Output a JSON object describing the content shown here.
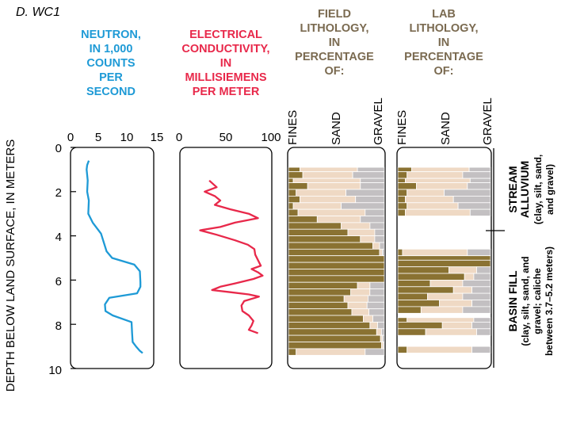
{
  "figure_label": "D. WC1",
  "y_axis_label": "DEPTH BELOW LAND SURFACE, IN METERS",
  "colors": {
    "neutron": "#1e9ad6",
    "conductivity": "#e8284a",
    "header_blue": "#1e9ad6",
    "header_red": "#e8284a",
    "header_brown": "#7a6a50",
    "fines": "#8a7232",
    "sand": "#efd9c4",
    "gravel": "#c3c0c2"
  },
  "headers": {
    "neutron": [
      "NEUTRON,",
      "IN 1,000",
      "COUNTS",
      "PER",
      "SECOND"
    ],
    "conductivity": [
      "ELECTRICAL",
      "CONDUCTIVITY,",
      "IN",
      "MILLISIEMENS",
      "PER METER"
    ],
    "field": [
      "FIELD",
      "LITHOLOGY,",
      "IN",
      "PERCENTAGE",
      "OF:"
    ],
    "lab": [
      "LAB",
      "LITHOLOGY,",
      "IN",
      "PERCENTAGE",
      "OF:"
    ],
    "litho_sub": [
      "FINES",
      "SAND",
      "GRAVEL"
    ]
  },
  "units": {
    "stream": {
      "title": "STREAM",
      "title2": "ALLUVIUM",
      "desc1": "(clay, silt, sand,",
      "desc2": "and gravel)"
    },
    "basin": {
      "title": "BASIN FILL",
      "desc1": "(clay, silt, sand, and",
      "desc2": "gravel; caliche",
      "desc3": "between 3.7–5.2 meters)"
    }
  },
  "chart_data": [
    {
      "type": "line",
      "name_header": "NEUTRON, IN 1,000 COUNTS PER SECOND",
      "xlim": [
        0,
        15
      ],
      "xticks": [
        "0",
        "5",
        "10",
        "15"
      ],
      "ylim": [
        0,
        10
      ],
      "yticks": [
        "0",
        "2",
        "4",
        "6",
        "8",
        "10"
      ],
      "y_inverted": true,
      "points": [
        [
          3.3,
          0.6
        ],
        [
          3.0,
          0.8
        ],
        [
          2.9,
          1.0
        ],
        [
          3.1,
          1.5
        ],
        [
          3.0,
          2.0
        ],
        [
          3.3,
          2.4
        ],
        [
          3.2,
          3.0
        ],
        [
          4.0,
          3.4
        ],
        [
          5.5,
          3.9
        ],
        [
          6.0,
          4.3
        ],
        [
          6.5,
          4.7
        ],
        [
          7.5,
          5.0
        ],
        [
          11.5,
          5.3
        ],
        [
          12.5,
          5.6
        ],
        [
          12.6,
          6.1
        ],
        [
          12.6,
          6.3
        ],
        [
          12.0,
          6.6
        ],
        [
          7.0,
          6.8
        ],
        [
          6.2,
          7.1
        ],
        [
          6.3,
          7.4
        ],
        [
          7.6,
          7.6
        ],
        [
          11.0,
          7.9
        ],
        [
          11.1,
          8.4
        ],
        [
          11.2,
          8.8
        ],
        [
          11.5,
          8.9
        ],
        [
          11.8,
          9.0
        ],
        [
          12.5,
          9.2
        ],
        [
          13.0,
          9.3
        ]
      ]
    },
    {
      "type": "line",
      "name_header": "ELECTRICAL CONDUCTIVITY, IN MILLISIEMENS PER METER",
      "xlim": [
        0,
        100
      ],
      "xticks": [
        "0",
        "50",
        "100"
      ],
      "ylim": [
        0,
        10
      ],
      "y_inverted": true,
      "points": [
        [
          32,
          1.5
        ],
        [
          40,
          1.8
        ],
        [
          27,
          2.0
        ],
        [
          38,
          2.2
        ],
        [
          44,
          2.4
        ],
        [
          38,
          2.6
        ],
        [
          55,
          2.8
        ],
        [
          75,
          3.0
        ],
        [
          85,
          3.2
        ],
        [
          60,
          3.4
        ],
        [
          44,
          3.6
        ],
        [
          22,
          3.75
        ],
        [
          40,
          3.95
        ],
        [
          60,
          4.2
        ],
        [
          74,
          4.4
        ],
        [
          81,
          4.6
        ],
        [
          82,
          4.85
        ],
        [
          85,
          5.1
        ],
        [
          88,
          5.35
        ],
        [
          78,
          5.5
        ],
        [
          85,
          5.65
        ],
        [
          90,
          5.8
        ],
        [
          80,
          5.95
        ],
        [
          60,
          6.15
        ],
        [
          44,
          6.3
        ],
        [
          35,
          6.45
        ],
        [
          55,
          6.55
        ],
        [
          75,
          6.65
        ],
        [
          86,
          6.75
        ],
        [
          70,
          6.95
        ],
        [
          67,
          7.15
        ],
        [
          68,
          7.4
        ],
        [
          75,
          7.6
        ],
        [
          80,
          7.85
        ],
        [
          78,
          8.05
        ],
        [
          75,
          8.25
        ],
        [
          85,
          8.4
        ]
      ]
    },
    {
      "type": "bar",
      "orientation": "horizontal-stacked",
      "title": "FIELD LITHOLOGY, IN PERCENTAGE OF:",
      "categories": [
        "FINES",
        "SAND",
        "GRAVEL"
      ],
      "xlim": [
        0,
        100
      ],
      "ylim": [
        0,
        10
      ],
      "y_inverted": true,
      "intervals": [
        {
          "top": 0.9,
          "bottom": 1.1,
          "fines": 12,
          "sand": 60,
          "gravel": 28
        },
        {
          "top": 1.1,
          "bottom": 1.4,
          "fines": 15,
          "sand": 52,
          "gravel": 33
        },
        {
          "top": 1.4,
          "bottom": 1.6,
          "fines": 5,
          "sand": 70,
          "gravel": 25
        },
        {
          "top": 1.6,
          "bottom": 1.9,
          "fines": 20,
          "sand": 55,
          "gravel": 25
        },
        {
          "top": 1.9,
          "bottom": 2.2,
          "fines": 8,
          "sand": 52,
          "gravel": 40
        },
        {
          "top": 2.2,
          "bottom": 2.5,
          "fines": 12,
          "sand": 58,
          "gravel": 30
        },
        {
          "top": 2.5,
          "bottom": 2.8,
          "fines": 5,
          "sand": 50,
          "gravel": 45
        },
        {
          "top": 2.8,
          "bottom": 3.1,
          "fines": 10,
          "sand": 70,
          "gravel": 20
        },
        {
          "top": 3.1,
          "bottom": 3.4,
          "fines": 30,
          "sand": 45,
          "gravel": 25
        },
        {
          "top": 3.4,
          "bottom": 3.7,
          "fines": 55,
          "sand": 30,
          "gravel": 15
        },
        {
          "top": 3.7,
          "bottom": 4.0,
          "fines": 62,
          "sand": 28,
          "gravel": 10
        },
        {
          "top": 4.0,
          "bottom": 4.3,
          "fines": 75,
          "sand": 15,
          "gravel": 10
        },
        {
          "top": 4.3,
          "bottom": 4.6,
          "fines": 88,
          "sand": 7,
          "gravel": 5
        },
        {
          "top": 4.6,
          "bottom": 4.9,
          "fines": 95,
          "sand": 3,
          "gravel": 2
        },
        {
          "top": 4.9,
          "bottom": 5.2,
          "fines": 100,
          "sand": 0,
          "gravel": 0
        },
        {
          "top": 5.2,
          "bottom": 5.5,
          "fines": 100,
          "sand": 0,
          "gravel": 0
        },
        {
          "top": 5.5,
          "bottom": 5.8,
          "fines": 100,
          "sand": 0,
          "gravel": 0
        },
        {
          "top": 5.8,
          "bottom": 6.1,
          "fines": 100,
          "sand": 0,
          "gravel": 0
        },
        {
          "top": 6.1,
          "bottom": 6.4,
          "fines": 72,
          "sand": 13,
          "gravel": 15
        },
        {
          "top": 6.4,
          "bottom": 6.7,
          "fines": 65,
          "sand": 20,
          "gravel": 15
        },
        {
          "top": 6.7,
          "bottom": 7.0,
          "fines": 58,
          "sand": 25,
          "gravel": 17
        },
        {
          "top": 7.0,
          "bottom": 7.3,
          "fines": 62,
          "sand": 20,
          "gravel": 18
        },
        {
          "top": 7.3,
          "bottom": 7.6,
          "fines": 66,
          "sand": 18,
          "gravel": 16
        },
        {
          "top": 7.6,
          "bottom": 7.9,
          "fines": 78,
          "sand": 10,
          "gravel": 12
        },
        {
          "top": 7.9,
          "bottom": 8.2,
          "fines": 85,
          "sand": 8,
          "gravel": 7
        },
        {
          "top": 8.2,
          "bottom": 8.5,
          "fines": 92,
          "sand": 5,
          "gravel": 3
        },
        {
          "top": 8.5,
          "bottom": 8.8,
          "fines": 96,
          "sand": 2,
          "gravel": 2
        },
        {
          "top": 8.8,
          "bottom": 9.1,
          "fines": 97,
          "sand": 2,
          "gravel": 1
        },
        {
          "top": 9.1,
          "bottom": 9.4,
          "fines": 8,
          "sand": 72,
          "gravel": 20
        }
      ]
    },
    {
      "type": "bar",
      "orientation": "horizontal-stacked",
      "title": "LAB LITHOLOGY, IN PERCENTAGE OF:",
      "categories": [
        "FINES",
        "SAND",
        "GRAVEL"
      ],
      "xlim": [
        0,
        100
      ],
      "ylim": [
        0,
        10
      ],
      "y_inverted": true,
      "intervals": [
        {
          "top": 0.9,
          "bottom": 1.1,
          "fines": 15,
          "sand": 62,
          "gravel": 23
        },
        {
          "top": 1.1,
          "bottom": 1.4,
          "fines": 10,
          "sand": 60,
          "gravel": 30
        },
        {
          "top": 1.4,
          "bottom": 1.6,
          "fines": 8,
          "sand": 70,
          "gravel": 22
        },
        {
          "top": 1.6,
          "bottom": 1.9,
          "fines": 20,
          "sand": 55,
          "gravel": 25
        },
        {
          "top": 1.9,
          "bottom": 2.2,
          "fines": 10,
          "sand": 40,
          "gravel": 50
        },
        {
          "top": 2.2,
          "bottom": 2.5,
          "fines": 8,
          "sand": 52,
          "gravel": 40
        },
        {
          "top": 2.5,
          "bottom": 2.8,
          "fines": 10,
          "sand": 55,
          "gravel": 35
        },
        {
          "top": 2.8,
          "bottom": 3.1,
          "fines": 8,
          "sand": 70,
          "gravel": 22
        },
        {
          "top": 4.6,
          "bottom": 4.9,
          "fines": 5,
          "sand": 70,
          "gravel": 25
        },
        {
          "top": 4.9,
          "bottom": 5.1,
          "fines": 100,
          "sand": 0,
          "gravel": 0
        },
        {
          "top": 5.1,
          "bottom": 5.4,
          "fines": 100,
          "sand": 0,
          "gravel": 0
        },
        {
          "top": 5.4,
          "bottom": 5.7,
          "fines": 55,
          "sand": 30,
          "gravel": 15
        },
        {
          "top": 5.7,
          "bottom": 6.0,
          "fines": 72,
          "sand": 10,
          "gravel": 18
        },
        {
          "top": 6.0,
          "bottom": 6.3,
          "fines": 35,
          "sand": 35,
          "gravel": 30
        },
        {
          "top": 6.3,
          "bottom": 6.6,
          "fines": 60,
          "sand": 20,
          "gravel": 20
        },
        {
          "top": 6.6,
          "bottom": 6.9,
          "fines": 32,
          "sand": 38,
          "gravel": 30
        },
        {
          "top": 6.9,
          "bottom": 7.2,
          "fines": 45,
          "sand": 35,
          "gravel": 20
        },
        {
          "top": 7.2,
          "bottom": 7.5,
          "fines": 25,
          "sand": 45,
          "gravel": 30
        },
        {
          "top": 7.7,
          "bottom": 7.9,
          "fines": 10,
          "sand": 72,
          "gravel": 18
        },
        {
          "top": 7.9,
          "bottom": 8.2,
          "fines": 48,
          "sand": 32,
          "gravel": 20
        },
        {
          "top": 8.2,
          "bottom": 8.5,
          "fines": 30,
          "sand": 55,
          "gravel": 15
        },
        {
          "top": 9.0,
          "bottom": 9.3,
          "fines": 10,
          "sand": 70,
          "gravel": 20
        }
      ]
    }
  ]
}
